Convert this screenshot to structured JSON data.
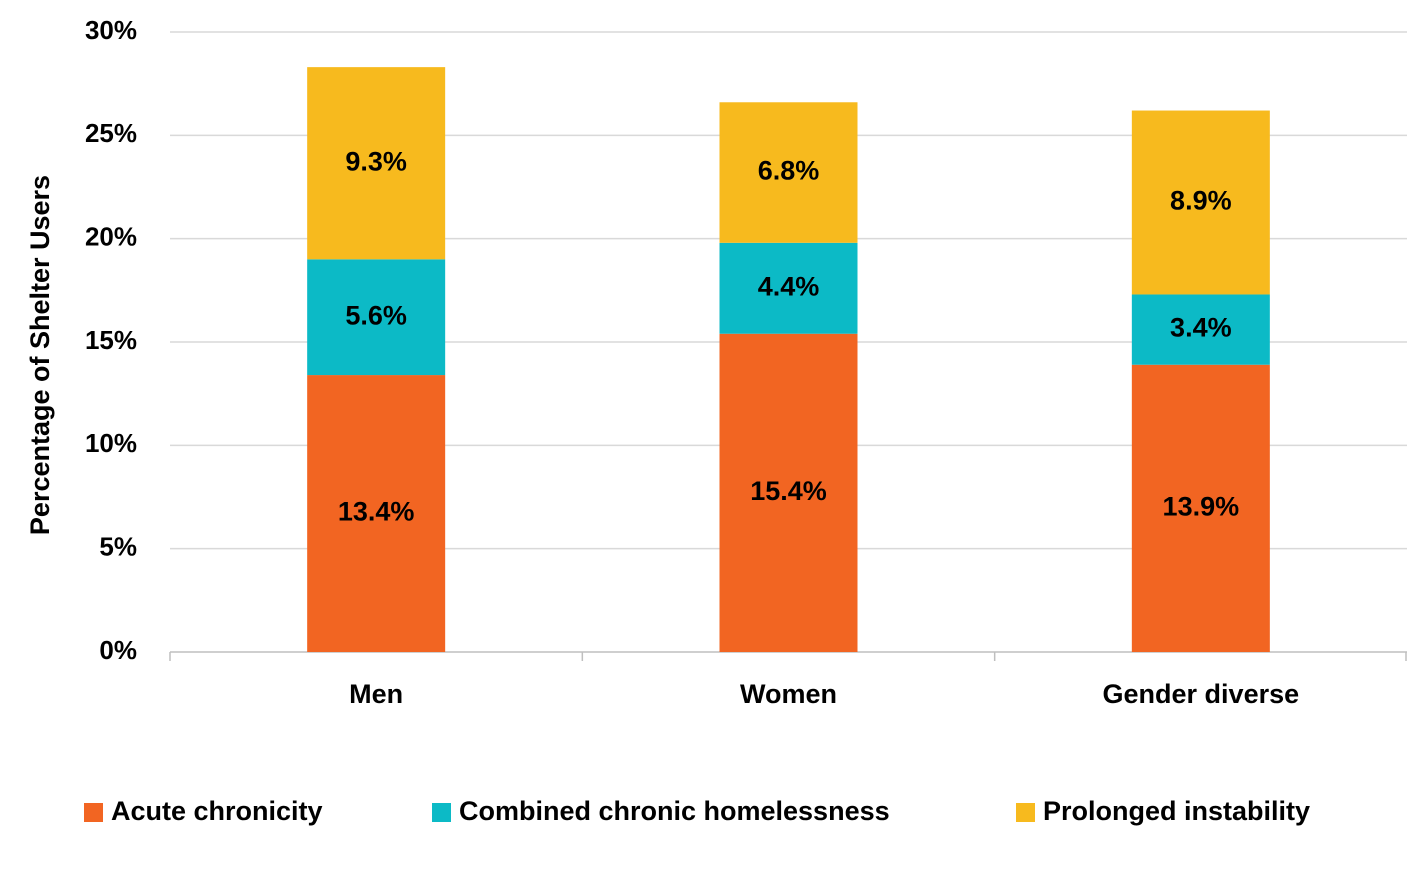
{
  "chart_data": {
    "type": "stacked_bar",
    "y_label": "Percentage of Shelter Users",
    "categories": [
      "Men",
      "Women",
      "Gender diverse"
    ],
    "series": [
      {
        "name": "Acute chronicity",
        "color": "#f26522",
        "values": [
          13.4,
          15.4,
          13.9
        ],
        "value_labels": [
          "13.4%",
          "15.4%",
          "13.9%"
        ]
      },
      {
        "name": "Combined chronic homelessness",
        "color": "#0cbac6",
        "values": [
          5.6,
          4.4,
          3.4
        ],
        "value_labels": [
          "5.6%",
          "4.4%",
          "3.4%"
        ]
      },
      {
        "name": "Prolonged instability",
        "color": "#f7ba1e",
        "values": [
          9.3,
          6.8,
          8.9
        ],
        "value_labels": [
          "9.3%",
          "6.8%",
          "8.9%"
        ]
      }
    ],
    "ylim": [
      0,
      30
    ],
    "yticks": [
      {
        "value": 0,
        "label": "0%"
      },
      {
        "value": 5,
        "label": "5%"
      },
      {
        "value": 10,
        "label": "10%"
      },
      {
        "value": 15,
        "label": "15%"
      },
      {
        "value": 20,
        "label": "20%"
      },
      {
        "value": 25,
        "label": "25%"
      },
      {
        "value": 30,
        "label": "30%"
      }
    ],
    "grid": true,
    "legend": "bottom"
  }
}
